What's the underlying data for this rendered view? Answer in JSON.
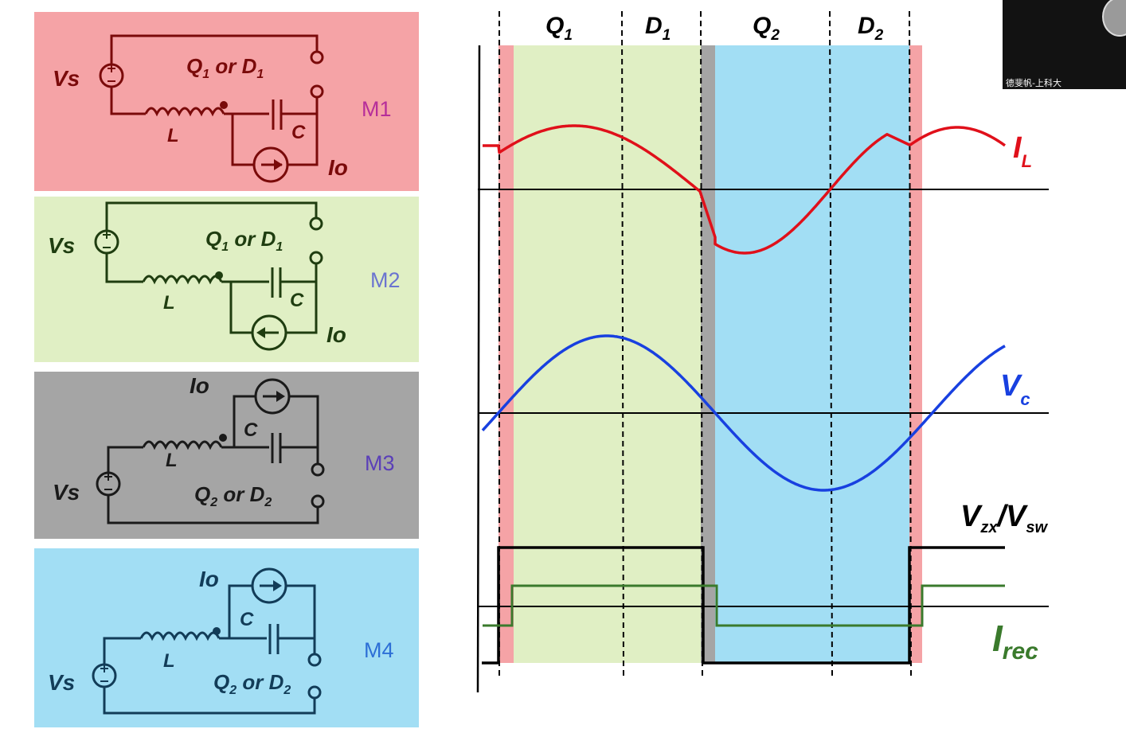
{
  "colors": {
    "m1": "#f5a3a6",
    "m2": "#e0efc4",
    "m3": "#a5a5a5",
    "m4": "#a2def4",
    "m1_circuit": "#7a0a0a",
    "m2_circuit": "#1f3d10",
    "m3_circuit": "#1a1a1a",
    "m4_circuit": "#123c58",
    "m1_label": "#b62e9a",
    "m2_label": "#6b74d0",
    "m3_label": "#5a3fb8",
    "m4_label": "#2d6fd6",
    "il": "#e0101a",
    "vc": "#1840e0",
    "irec": "#3a7a2c",
    "vzx": "#000000"
  },
  "panels": [
    {
      "mode": "M1",
      "vs": "Vs",
      "switch": "Q",
      "switch_sub": "1",
      "or_text": "or",
      "diode": "D",
      "diode_sub": "1",
      "inductor": "L",
      "capacitor": "C",
      "source": "Io"
    },
    {
      "mode": "M2",
      "vs": "Vs",
      "switch": "Q",
      "switch_sub": "1",
      "or_text": "or",
      "diode": "D",
      "diode_sub": "1",
      "inductor": "L",
      "capacitor": "C",
      "source": "Io"
    },
    {
      "mode": "M3",
      "vs": "Vs",
      "switch": "Q",
      "switch_sub": "2",
      "or_text": "or",
      "diode": "D",
      "diode_sub": "2",
      "inductor": "L",
      "capacitor": "C",
      "source": "Io"
    },
    {
      "mode": "M4",
      "vs": "Vs",
      "switch": "Q",
      "switch_sub": "2",
      "or_text": "or",
      "diode": "D",
      "diode_sub": "2",
      "inductor": "L",
      "capacitor": "C",
      "source": "Io"
    }
  ],
  "intervals": [
    {
      "main": "Q",
      "sub": "1"
    },
    {
      "main": "D",
      "sub": "1"
    },
    {
      "main": "Q",
      "sub": "2"
    },
    {
      "main": "D",
      "sub": "2"
    }
  ],
  "signals": {
    "il": {
      "main": "I",
      "sub": "L"
    },
    "vc": {
      "main": "V",
      "sub": "c"
    },
    "vzx": {
      "main1": "V",
      "sub1": "zx",
      "slash": "/",
      "main2": "V",
      "sub2": "sw"
    },
    "irec": {
      "main": "I",
      "sub": "rec"
    }
  },
  "video": {
    "name": "德斐帆-上科大"
  }
}
